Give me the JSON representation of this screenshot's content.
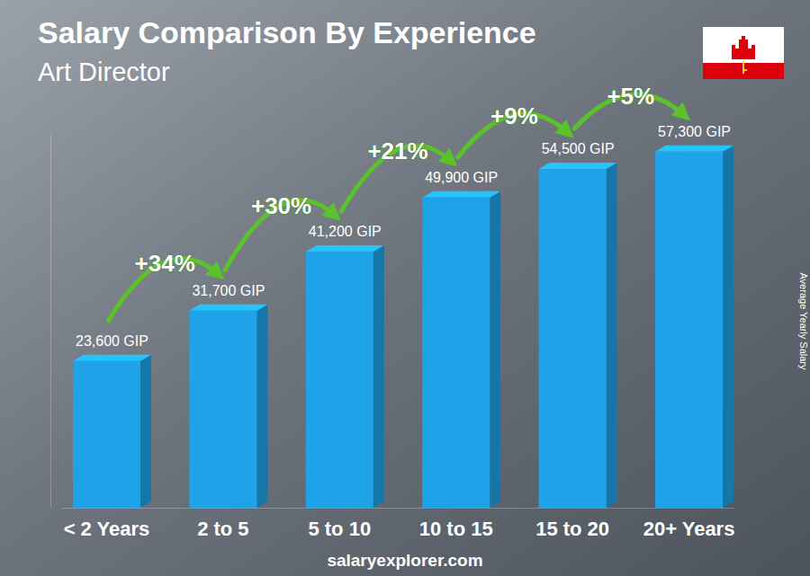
{
  "chart_data": {
    "type": "bar",
    "title": "Salary Comparison By Experience",
    "subtitle": "Art Director",
    "categories": [
      "< 2 Years",
      "2 to 5",
      "5 to 10",
      "10 to 15",
      "15 to 20",
      "20+ Years"
    ],
    "values": [
      23600,
      31700,
      41200,
      49900,
      54500,
      57300
    ],
    "value_labels": [
      "23,600 GIP",
      "31,700 GIP",
      "41,200 GIP",
      "49,900 GIP",
      "54,500 GIP",
      "57,300 GIP"
    ],
    "annotations": [
      "+34%",
      "+30%",
      "+21%",
      "+9%",
      "+5%"
    ],
    "ylabel": "Average Yearly Salary",
    "footer": "salaryexplorer.com",
    "color": "#1fa3e8",
    "ylim": [
      0,
      60000
    ],
    "data_labels": true,
    "tick_labels": "x"
  }
}
